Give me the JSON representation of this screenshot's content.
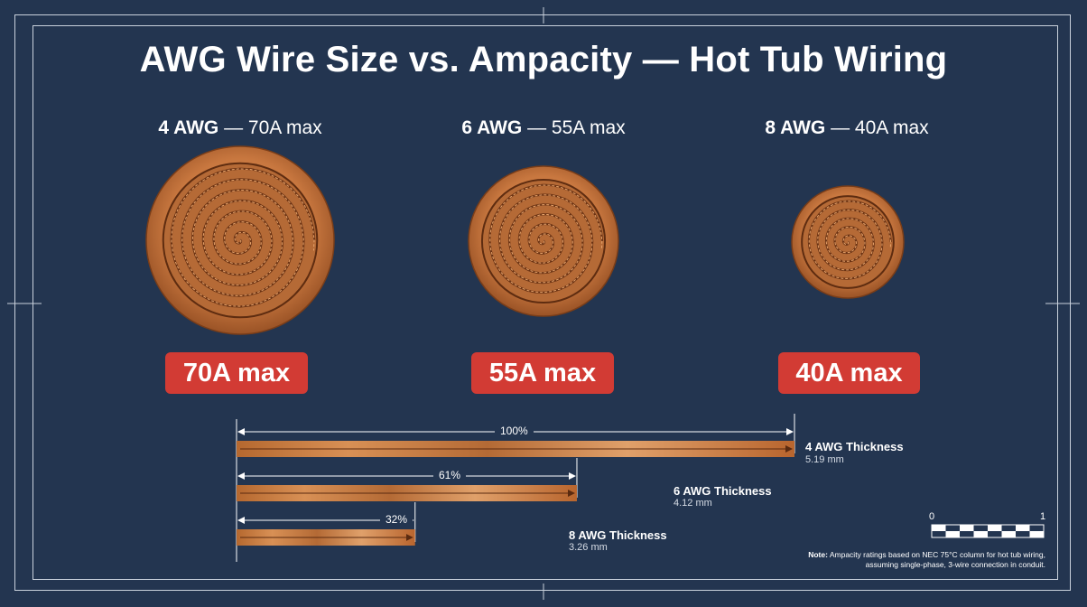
{
  "title": "AWG Wire Size vs. Ampacity — Hot Tub Wiring",
  "wires": [
    {
      "gauge": "4 AWG",
      "rating": " — 70A max",
      "badge": "70A max",
      "pct": "100%",
      "bar_label": "4 AWG Thickness",
      "thickness": "5.19 mm",
      "relative": 1.0
    },
    {
      "gauge": "6 AWG",
      "rating": " — 55A max",
      "badge": "55A max",
      "pct": "61%",
      "bar_label": "6 AWG Thickness",
      "thickness": "4.12 mm",
      "relative": 0.61
    },
    {
      "gauge": "8 AWG",
      "rating": " — 40A max",
      "badge": "40A max",
      "pct": "32%",
      "bar_label": "8 AWG Thickness",
      "thickness": "3.26 mm",
      "relative": 0.32
    }
  ],
  "scale": {
    "min": "0",
    "max": "1"
  },
  "note": {
    "label": "Note:",
    "text": " Ampacity ratings based on NEC 75°C column for hot tub wiring, assuming single-phase, 3-wire connection in conduit."
  },
  "colors": {
    "background": "#233550",
    "copper": "#c8773f",
    "badge": "#d23b34",
    "line": "#c9d1dc"
  }
}
